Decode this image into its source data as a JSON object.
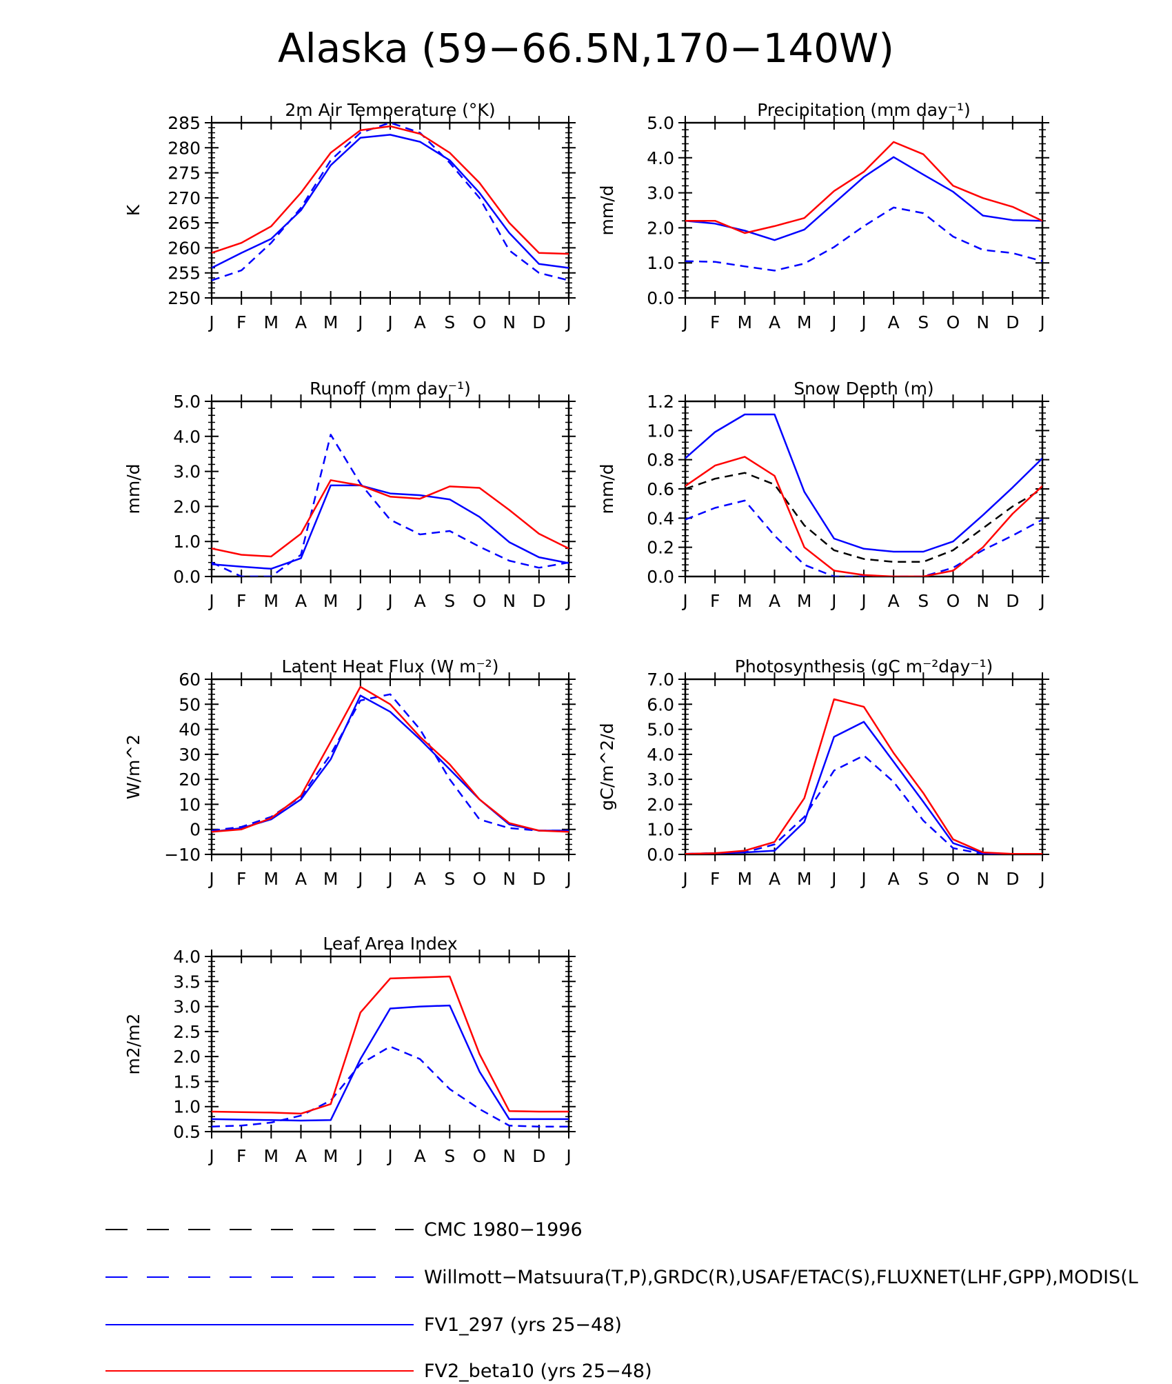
{
  "figure_title": "Alaska (59−66.5N,170−140W)",
  "months": [
    "J",
    "F",
    "M",
    "A",
    "M",
    "J",
    "J",
    "A",
    "S",
    "O",
    "N",
    "D",
    "J"
  ],
  "colors": {
    "obs": "#0000ff",
    "fv1": "#0000ff",
    "fv2": "#ff0000",
    "cmc": "#000000"
  },
  "legend": [
    {
      "key": "cmc",
      "label": "CMC 1980−1996",
      "color": "#000000",
      "dash": true
    },
    {
      "key": "obs",
      "label": "Willmott−Matsuura(T,P),GRDC(R),USAF/ETAC(S),FLUXNET(LHF,GPP),MODIS(L",
      "color": "#0000ff",
      "dash": true
    },
    {
      "key": "fv1",
      "label": "FV1_297 (yrs 25−48)",
      "color": "#0000ff",
      "dash": false
    },
    {
      "key": "fv2",
      "label": "FV2_beta10 (yrs 25−48)",
      "color": "#ff0000",
      "dash": false
    }
  ],
  "chart_data": [
    {
      "type": "line",
      "title": "2m Air Temperature (°K)",
      "ylabel": "K",
      "ylim": [
        250,
        285
      ],
      "yticks": [
        250,
        255,
        260,
        265,
        270,
        275,
        280,
        285
      ],
      "ytick_labels": [
        "250",
        "255",
        "260",
        "265",
        "270",
        "275",
        "280",
        "285"
      ],
      "categories": [
        "J",
        "F",
        "M",
        "A",
        "M",
        "J",
        "J",
        "A",
        "S",
        "O",
        "N",
        "D",
        "J"
      ],
      "series": [
        {
          "name": "Willmott-Matsuura",
          "key": "obs",
          "values": [
            253.5,
            255.5,
            261,
            268,
            277.5,
            283,
            285,
            283,
            277,
            270,
            259.5,
            255,
            253.5
          ]
        },
        {
          "name": "FV1_297",
          "key": "fv1",
          "values": [
            256,
            259,
            261.8,
            267.5,
            276.5,
            282,
            282.6,
            281.2,
            277.5,
            271,
            263,
            256.8,
            256
          ]
        },
        {
          "name": "FV2_beta10",
          "key": "fv2",
          "values": [
            259,
            261,
            264.3,
            271,
            279,
            283.5,
            284.3,
            282.8,
            279,
            273,
            265,
            259,
            258.8
          ]
        }
      ]
    },
    {
      "type": "line",
      "title": "Precipitation (mm day⁻¹)",
      "ylabel": "mm/d",
      "ylim": [
        0,
        5
      ],
      "yticks": [
        0,
        1,
        2,
        3,
        4,
        5
      ],
      "ytick_labels": [
        "0.0",
        "1.0",
        "2.0",
        "3.0",
        "4.0",
        "5.0"
      ],
      "categories": [
        "J",
        "F",
        "M",
        "A",
        "M",
        "J",
        "J",
        "A",
        "S",
        "O",
        "N",
        "D",
        "J"
      ],
      "series": [
        {
          "name": "Willmott-Matsuura",
          "key": "obs",
          "values": [
            1.05,
            1.03,
            0.9,
            0.78,
            0.98,
            1.45,
            2.05,
            2.58,
            2.42,
            1.75,
            1.37,
            1.28,
            1.05
          ]
        },
        {
          "name": "FV1_297",
          "key": "fv1",
          "values": [
            2.2,
            2.12,
            1.92,
            1.65,
            1.95,
            2.7,
            3.45,
            4.02,
            3.52,
            3.03,
            2.35,
            2.22,
            2.2
          ]
        },
        {
          "name": "FV2_beta10",
          "key": "fv2",
          "values": [
            2.2,
            2.2,
            1.85,
            2.05,
            2.28,
            3.05,
            3.6,
            4.45,
            4.1,
            3.2,
            2.85,
            2.6,
            2.2
          ]
        }
      ]
    },
    {
      "type": "line",
      "title": "Runoff (mm day⁻¹)",
      "ylabel": "mm/d",
      "ylim": [
        0,
        5
      ],
      "yticks": [
        0,
        1,
        2,
        3,
        4,
        5
      ],
      "ytick_labels": [
        "0.0",
        "1.0",
        "2.0",
        "3.0",
        "4.0",
        "5.0"
      ],
      "categories": [
        "J",
        "F",
        "M",
        "A",
        "M",
        "J",
        "J",
        "A",
        "S",
        "O",
        "N",
        "D",
        "J"
      ],
      "series": [
        {
          "name": "GRDC",
          "key": "obs",
          "values": [
            0.4,
            0.0,
            0.0,
            0.62,
            4.05,
            2.65,
            1.62,
            1.2,
            1.3,
            0.85,
            0.45,
            0.25,
            0.4
          ]
        },
        {
          "name": "FV1_297",
          "key": "fv1",
          "values": [
            0.35,
            0.28,
            0.22,
            0.52,
            2.6,
            2.6,
            2.37,
            2.32,
            2.2,
            1.7,
            0.98,
            0.55,
            0.38
          ]
        },
        {
          "name": "FV2_beta10",
          "key": "fv2",
          "values": [
            0.8,
            0.62,
            0.57,
            1.22,
            2.75,
            2.6,
            2.28,
            2.22,
            2.57,
            2.53,
            1.9,
            1.22,
            0.8
          ]
        }
      ]
    },
    {
      "type": "line",
      "title": "Snow Depth (m)",
      "ylabel": "mm/d",
      "ylim": [
        0,
        1.2
      ],
      "yticks": [
        0,
        0.2,
        0.4,
        0.6,
        0.8,
        1.0,
        1.2
      ],
      "ytick_labels": [
        "0.0",
        "0.2",
        "0.4",
        "0.6",
        "0.8",
        "1.0",
        "1.2"
      ],
      "categories": [
        "J",
        "F",
        "M",
        "A",
        "M",
        "J",
        "J",
        "A",
        "S",
        "O",
        "N",
        "D",
        "J"
      ],
      "series": [
        {
          "name": "CMC",
          "key": "cmc",
          "values": [
            0.6,
            0.67,
            0.71,
            0.63,
            0.35,
            0.18,
            0.12,
            0.1,
            0.1,
            0.18,
            0.33,
            0.48,
            0.6
          ]
        },
        {
          "name": "USAF/ETAC",
          "key": "obs",
          "values": [
            0.39,
            0.47,
            0.52,
            0.28,
            0.08,
            0.0,
            0.0,
            0.0,
            0.0,
            0.06,
            0.18,
            0.28,
            0.39
          ]
        },
        {
          "name": "FV1_297",
          "key": "fv1",
          "values": [
            0.81,
            0.99,
            1.11,
            1.11,
            0.58,
            0.26,
            0.19,
            0.17,
            0.17,
            0.24,
            0.42,
            0.61,
            0.81
          ]
        },
        {
          "name": "FV2_beta10",
          "key": "fv2",
          "values": [
            0.62,
            0.76,
            0.82,
            0.69,
            0.2,
            0.04,
            0.01,
            0.0,
            0.0,
            0.04,
            0.2,
            0.43,
            0.62
          ]
        }
      ]
    },
    {
      "type": "line",
      "title": "Latent Heat Flux (W m⁻²)",
      "ylabel": "W/m^2",
      "ylim": [
        -10,
        60
      ],
      "yticks": [
        -10,
        0,
        10,
        20,
        30,
        40,
        50,
        60
      ],
      "ytick_labels": [
        "−10",
        "0",
        "10",
        "20",
        "30",
        "40",
        "50",
        "60"
      ],
      "categories": [
        "J",
        "F",
        "M",
        "A",
        "M",
        "J",
        "J",
        "A",
        "S",
        "O",
        "N",
        "D",
        "J"
      ],
      "series": [
        {
          "name": "FLUXNET",
          "key": "obs",
          "values": [
            -0.5,
            1.0,
            5.0,
            13.0,
            30.0,
            51.5,
            54.0,
            40.0,
            20.0,
            4.0,
            0.5,
            -0.5,
            -0.5
          ]
        },
        {
          "name": "FV1_297",
          "key": "fv1",
          "values": [
            -1.0,
            0.5,
            4.0,
            12.0,
            28.0,
            53.5,
            47.0,
            36.0,
            24.0,
            12.0,
            2.0,
            -0.5,
            -0.5
          ]
        },
        {
          "name": "FV2_beta10",
          "key": "fv2",
          "values": [
            -1.0,
            0.0,
            4.5,
            13.5,
            35.0,
            57.0,
            50.0,
            37.0,
            26.0,
            12.0,
            2.5,
            -0.5,
            -1.0
          ]
        }
      ]
    },
    {
      "type": "line",
      "title": "Photosynthesis (gC m⁻²day⁻¹)",
      "ylabel": "gC/m^2/d",
      "ylim": [
        0,
        7
      ],
      "yticks": [
        0,
        1,
        2,
        3,
        4,
        5,
        6,
        7
      ],
      "ytick_labels": [
        "0.0",
        "1.0",
        "2.0",
        "3.0",
        "4.0",
        "5.0",
        "6.0",
        "7.0"
      ],
      "categories": [
        "J",
        "F",
        "M",
        "A",
        "M",
        "J",
        "J",
        "A",
        "S",
        "O",
        "N",
        "D",
        "J"
      ],
      "series": [
        {
          "name": "FLUXNET",
          "key": "obs",
          "values": [
            0.02,
            0.05,
            0.08,
            0.4,
            1.5,
            3.35,
            3.95,
            2.9,
            1.35,
            0.25,
            0.02,
            0.0,
            0.0
          ]
        },
        {
          "name": "FV1_297",
          "key": "fv1",
          "values": [
            0.02,
            0.05,
            0.08,
            0.15,
            1.3,
            4.7,
            5.3,
            3.7,
            2.1,
            0.45,
            0.05,
            0.0,
            0.0
          ]
        },
        {
          "name": "FV2_beta10",
          "key": "fv2",
          "values": [
            0.02,
            0.05,
            0.15,
            0.5,
            2.25,
            6.2,
            5.9,
            4.05,
            2.45,
            0.6,
            0.08,
            0.02,
            0.02
          ]
        }
      ]
    },
    {
      "type": "line",
      "title": "Leaf Area Index",
      "ylabel": "m2/m2",
      "ylim": [
        0.5,
        4.0
      ],
      "yticks": [
        0.5,
        1.0,
        1.5,
        2.0,
        2.5,
        3.0,
        3.5,
        4.0
      ],
      "ytick_labels": [
        "0.5",
        "1.0",
        "1.5",
        "2.0",
        "2.5",
        "3.0",
        "3.5",
        "4.0"
      ],
      "categories": [
        "J",
        "F",
        "M",
        "A",
        "M",
        "J",
        "J",
        "A",
        "S",
        "O",
        "N",
        "D",
        "J"
      ],
      "series": [
        {
          "name": "MODIS",
          "key": "obs",
          "values": [
            0.6,
            0.62,
            0.68,
            0.82,
            1.12,
            1.85,
            2.2,
            1.95,
            1.35,
            0.95,
            0.62,
            0.6,
            0.6
          ]
        },
        {
          "name": "FV1_297",
          "key": "fv1",
          "values": [
            0.75,
            0.74,
            0.73,
            0.72,
            0.73,
            1.95,
            2.96,
            3.0,
            3.02,
            1.7,
            0.75,
            0.75,
            0.75
          ]
        },
        {
          "name": "FV2_beta10",
          "key": "fv2",
          "values": [
            0.9,
            0.89,
            0.88,
            0.86,
            1.05,
            2.88,
            3.56,
            3.58,
            3.6,
            2.05,
            0.91,
            0.9,
            0.9
          ]
        }
      ]
    }
  ]
}
